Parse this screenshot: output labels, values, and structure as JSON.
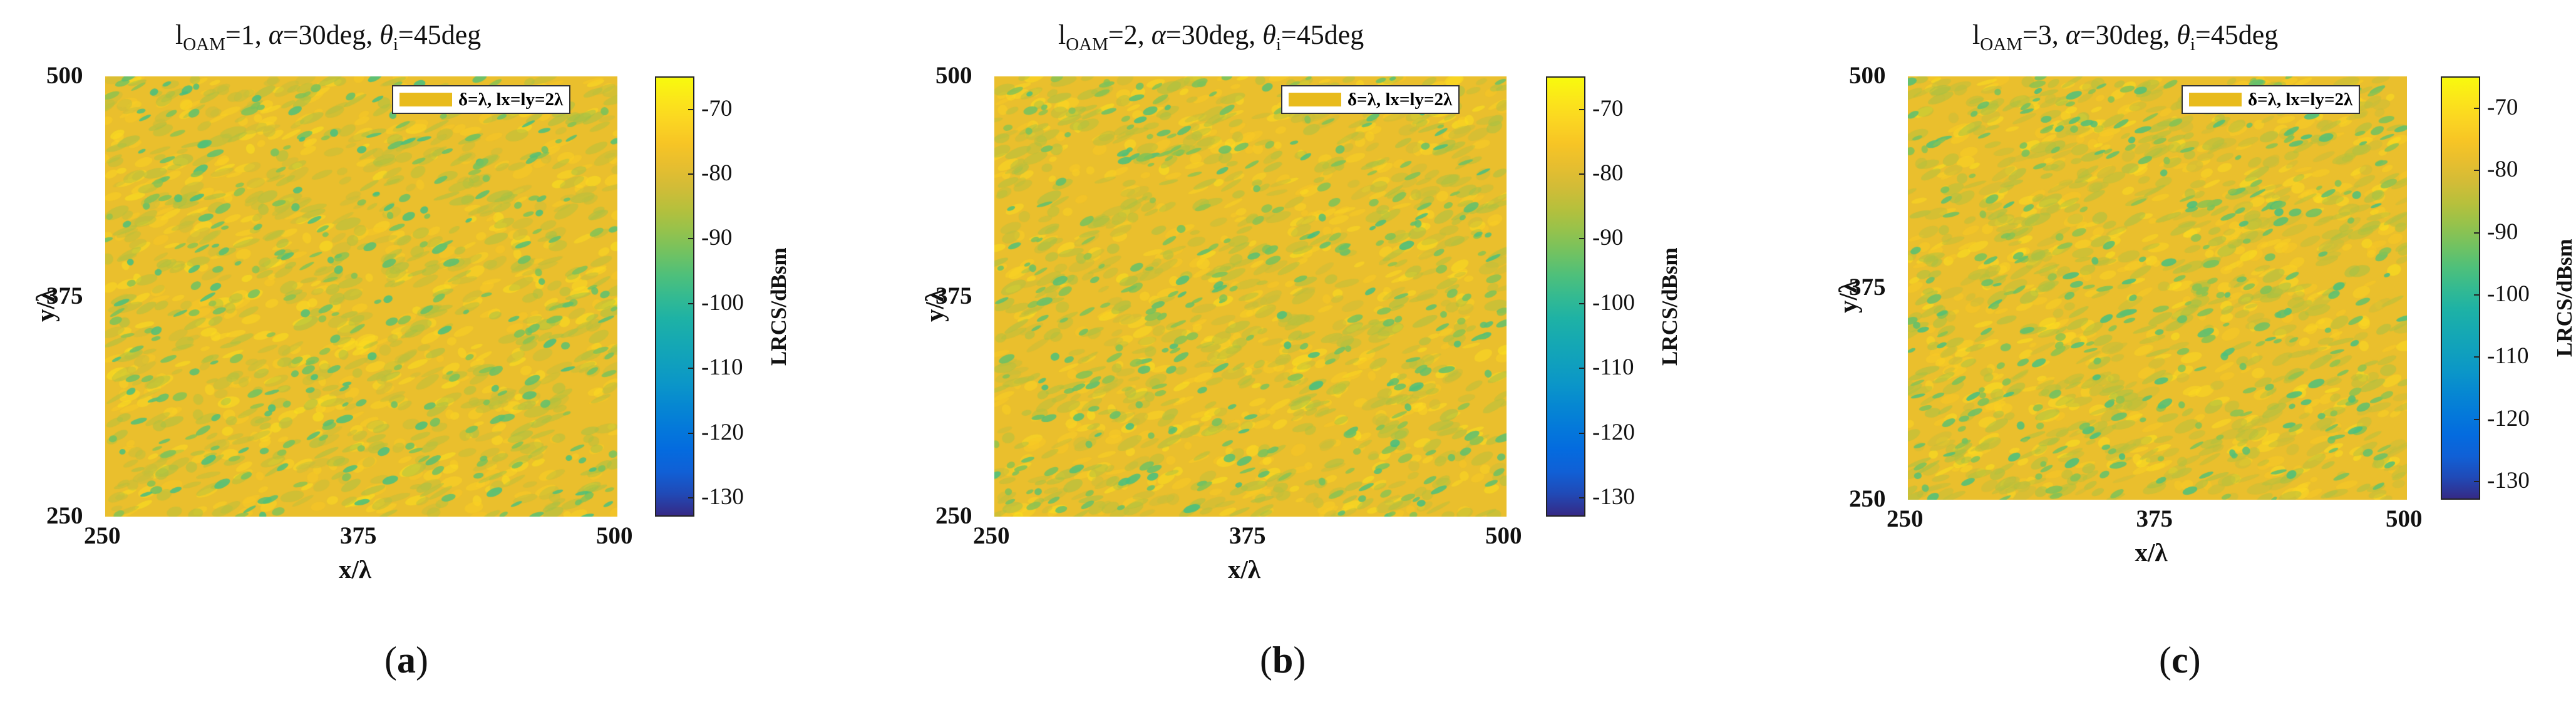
{
  "chart_data": [
    {
      "type": "heatmap",
      "panel_label": "a",
      "title": {
        "l_base": "l",
        "l_sub": "OAM",
        "l_value": "=1, ",
        "alpha_sym": "α",
        "alpha_val": "=30deg, ",
        "theta_sym": "θ",
        "theta_sub": "i",
        "theta_val": "=45deg"
      },
      "legend": "δ=λ, lx=ly=2λ",
      "xlabel": "x/λ",
      "ylabel": "y/λ",
      "xlim": [
        250,
        500
      ],
      "ylim": [
        250,
        500
      ],
      "xticks": [
        "250",
        "375",
        "500"
      ],
      "yticks": [
        "250",
        "375",
        "500"
      ],
      "colorbar": {
        "label": "LRCS/dBsm",
        "range": [
          -133,
          -65
        ],
        "ticks": [
          "-70",
          "-80",
          "-90",
          "-100",
          "-110",
          "-120",
          "-130"
        ],
        "tick_values": [
          -70,
          -80,
          -90,
          -100,
          -110,
          -120,
          -130
        ]
      },
      "field": {
        "mean_dBsm": -78,
        "min_dBsm": -97,
        "max_dBsm": -72,
        "seed": 11
      }
    },
    {
      "type": "heatmap",
      "panel_label": "b",
      "title": {
        "l_base": "l",
        "l_sub": "OAM",
        "l_value": "=2, ",
        "alpha_sym": "α",
        "alpha_val": "=30deg, ",
        "theta_sym": "θ",
        "theta_sub": "i",
        "theta_val": "=45deg"
      },
      "legend": "δ=λ, lx=ly=2λ",
      "xlabel": "x/λ",
      "ylabel": "y/λ",
      "xlim": [
        250,
        500
      ],
      "ylim": [
        250,
        500
      ],
      "xticks": [
        "250",
        "375",
        "500"
      ],
      "yticks": [
        "250",
        "375",
        "500"
      ],
      "colorbar": {
        "label": "LRCS/dBsm",
        "range": [
          -133,
          -65
        ],
        "ticks": [
          "-70",
          "-80",
          "-90",
          "-100",
          "-110",
          "-120",
          "-130"
        ],
        "tick_values": [
          -70,
          -80,
          -90,
          -100,
          -110,
          -120,
          -130
        ]
      },
      "field": {
        "mean_dBsm": -78,
        "min_dBsm": -97,
        "max_dBsm": -72,
        "seed": 23
      }
    },
    {
      "type": "heatmap",
      "panel_label": "c",
      "title": {
        "l_base": "l",
        "l_sub": "OAM",
        "l_value": "=3, ",
        "alpha_sym": "α",
        "alpha_val": "=30deg, ",
        "theta_sym": "θ",
        "theta_sub": "i",
        "theta_val": "=45deg"
      },
      "legend": "δ=λ, lx=ly=2λ",
      "xlabel": "x/λ",
      "ylabel": "y/λ",
      "xlim": [
        250,
        500
      ],
      "ylim": [
        250,
        500
      ],
      "xticks": [
        "250",
        "375",
        "500"
      ],
      "yticks": [
        "250",
        "375",
        "500"
      ],
      "colorbar": {
        "label": "LRCS/dBsm",
        "range": [
          -133,
          -65
        ],
        "ticks": [
          "-70",
          "-80",
          "-90",
          "-100",
          "-110",
          "-120",
          "-130"
        ],
        "tick_values": [
          -70,
          -80,
          -90,
          -100,
          -110,
          -120,
          -130
        ]
      },
      "field": {
        "mean_dBsm": -78,
        "min_dBsm": -97,
        "max_dBsm": -72,
        "seed": 37
      }
    }
  ],
  "colormap": "parula",
  "colors": {
    "dominant": "#e8bb1c",
    "blob": "#1fbfa0",
    "swatch": "#e8bb1c"
  }
}
